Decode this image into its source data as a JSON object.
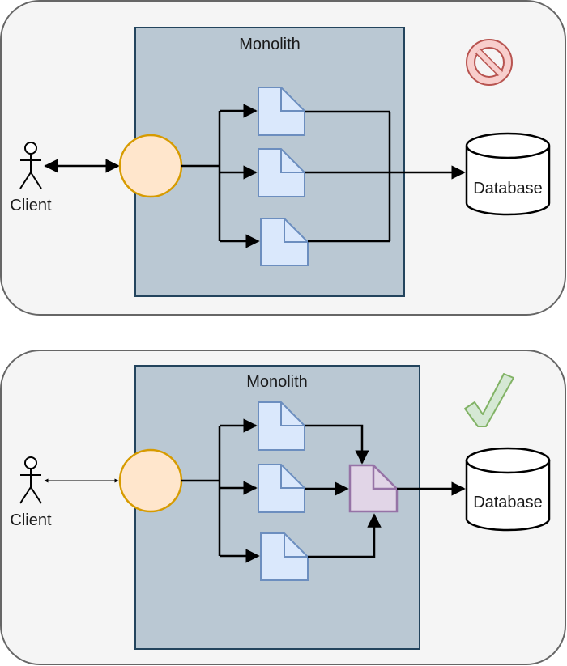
{
  "panels": [
    {
      "monolith_label": "Monolith",
      "client_label": "Client",
      "database_label": "Database",
      "status_icon": "prohibited-icon"
    },
    {
      "monolith_label": "Monolith",
      "client_label": "Client",
      "database_label": "Database",
      "status_icon": "checkmark-icon"
    }
  ],
  "colors": {
    "panel_fill": "#f5f5f5",
    "panel_stroke": "#666666",
    "monolith_fill": "#bac8d3",
    "monolith_stroke": "#23445d",
    "circle_fill": "#ffe6cc",
    "circle_stroke": "#d79b00",
    "doc_fill": "#dae8fc",
    "doc_stroke": "#6c8ebf",
    "aggregator_fill": "#e1d5e7",
    "aggregator_stroke": "#9673a6",
    "prohibited_fill": "#f8cecc",
    "prohibited_stroke": "#b85450",
    "check_fill": "#d5e8d4",
    "check_stroke": "#82b366"
  }
}
